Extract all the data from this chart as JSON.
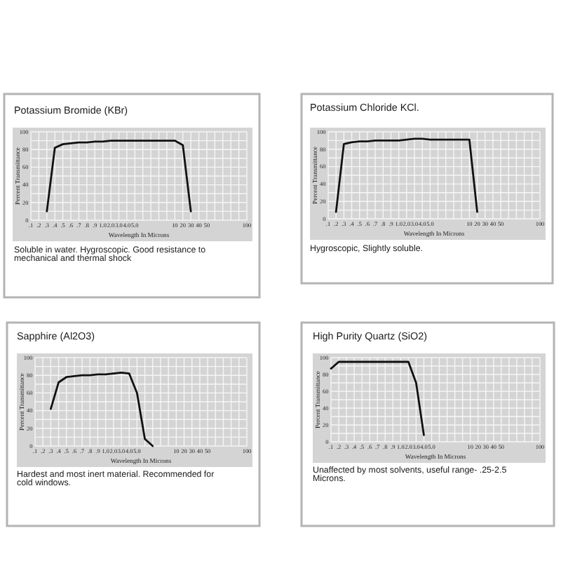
{
  "chart_data": [
    {
      "type": "line",
      "title": "Potassium Bromide (KBr)",
      "xlabel": "Wavelength In Microns",
      "ylabel": "Percent Transmittance",
      "categories": [
        ".1",
        ".2",
        ".3",
        ".4",
        ".5",
        ".6",
        ".7",
        ".8",
        ".9",
        "1.0",
        "2.0",
        "3.0",
        "4.0",
        "5.0",
        null,
        null,
        null,
        null,
        "10",
        "20",
        "30",
        "40",
        "50",
        null,
        null,
        null,
        null,
        "100"
      ],
      "values": [
        null,
        null,
        10,
        82,
        86,
        87,
        88,
        88,
        89,
        89,
        90,
        90,
        90,
        90,
        90,
        90,
        90,
        90,
        90,
        85,
        10,
        null,
        null,
        null,
        null,
        null,
        null,
        null
      ],
      "color": "#111111",
      "ylim": [
        0,
        100
      ],
      "yticks": [
        0,
        {
          "value": 10,
          "label": null
        },
        20,
        {
          "value": 30,
          "label": null
        },
        40,
        {
          "value": 50,
          "label": null
        },
        60,
        {
          "value": 70,
          "label": null
        },
        80,
        {
          "value": 90,
          "label": null
        },
        100
      ],
      "grid": true,
      "annotations": [
        "Soluble in water. Hygroscopic. Good resistance to mechanical and thermal shock"
      ]
    },
    {
      "type": "line",
      "title": "Potassium Chloride KCl.",
      "xlabel": "Wavelength In Microns",
      "ylabel": "Percent Transmittance",
      "categories": [
        ".1",
        ".2",
        ".3",
        ".4",
        ".5",
        ".6",
        ".7",
        ".8",
        ".9",
        "1.0",
        "2.0",
        "3.0",
        "4.0",
        "5.0",
        null,
        null,
        null,
        null,
        "10",
        "20",
        "30",
        "40",
        "50",
        null,
        null,
        null,
        null,
        "100"
      ],
      "values": [
        null,
        8,
        86,
        88,
        89,
        89,
        90,
        90,
        90,
        90,
        91,
        92,
        92,
        91,
        91,
        91,
        91,
        91,
        91,
        8,
        null,
        null,
        null,
        null,
        null,
        null,
        null,
        null
      ],
      "color": "#111111",
      "ylim": [
        0,
        100
      ],
      "yticks": [
        0,
        {
          "value": 10,
          "label": null
        },
        20,
        {
          "value": 30,
          "label": null
        },
        40,
        {
          "value": 50,
          "label": null
        },
        60,
        {
          "value": 70,
          "label": null
        },
        80,
        {
          "value": 90,
          "label": null
        },
        100
      ],
      "grid": true,
      "annotations": [
        "Hygroscopic, Slightly soluble."
      ]
    },
    {
      "type": "line",
      "title": "Sapphire (Al2O3)",
      "xlabel": "Wavelength In Microns",
      "ylabel": "Percent Transmittance",
      "categories": [
        ".1",
        ".2",
        ".3",
        ".4",
        ".5",
        ".6",
        ".7",
        ".8",
        ".9",
        "1.0",
        "2.0",
        "3.0",
        "4.0",
        "5.0",
        null,
        null,
        null,
        null,
        "10",
        "20",
        "30",
        "40",
        "50",
        null,
        null,
        null,
        null,
        "100"
      ],
      "values": [
        null,
        null,
        42,
        72,
        78,
        79,
        80,
        80,
        81,
        81,
        82,
        83,
        82,
        60,
        8,
        0,
        null,
        null,
        null,
        null,
        null,
        null,
        null,
        null,
        null,
        null,
        null,
        null
      ],
      "color": "#111111",
      "ylim": [
        0,
        100
      ],
      "yticks": [
        0,
        {
          "value": 10,
          "label": null
        },
        20,
        {
          "value": 30,
          "label": null
        },
        40,
        {
          "value": 50,
          "label": null
        },
        60,
        {
          "value": 70,
          "label": null
        },
        80,
        {
          "value": 90,
          "label": null
        },
        100
      ],
      "grid": true,
      "annotations": [
        "Hardest and most inert material. Recommended for cold windows."
      ]
    },
    {
      "type": "line",
      "title": "High Purity Quartz (SiO2)",
      "xlabel": "Wavelength In Microns",
      "ylabel": "Percent Transmittance",
      "categories": [
        ".1",
        ".2",
        ".3",
        ".4",
        ".5",
        ".6",
        ".7",
        ".8",
        ".9",
        "1.0",
        "2.0",
        "3.0",
        "4.0",
        "5.0",
        null,
        null,
        null,
        null,
        "10",
        "20",
        "30",
        "40",
        "50",
        null,
        null,
        null,
        null,
        "100"
      ],
      "values": [
        87,
        95,
        95,
        95,
        95,
        95,
        95,
        95,
        95,
        95,
        95,
        70,
        8,
        null,
        null,
        null,
        null,
        null,
        null,
        null,
        null,
        null,
        null,
        null,
        null,
        null,
        null,
        null
      ],
      "color": "#111111",
      "ylim": [
        0,
        100
      ],
      "yticks": [
        0,
        {
          "value": 10,
          "label": null
        },
        20,
        {
          "value": 30,
          "label": null
        },
        40,
        {
          "value": 50,
          "label": null
        },
        60,
        {
          "value": 70,
          "label": null
        },
        80,
        {
          "value": 90,
          "label": null
        },
        100
      ],
      "grid": true,
      "annotations": [
        "Unaffected by most solvents, useful range- .25-2.5 Microns."
      ]
    }
  ]
}
